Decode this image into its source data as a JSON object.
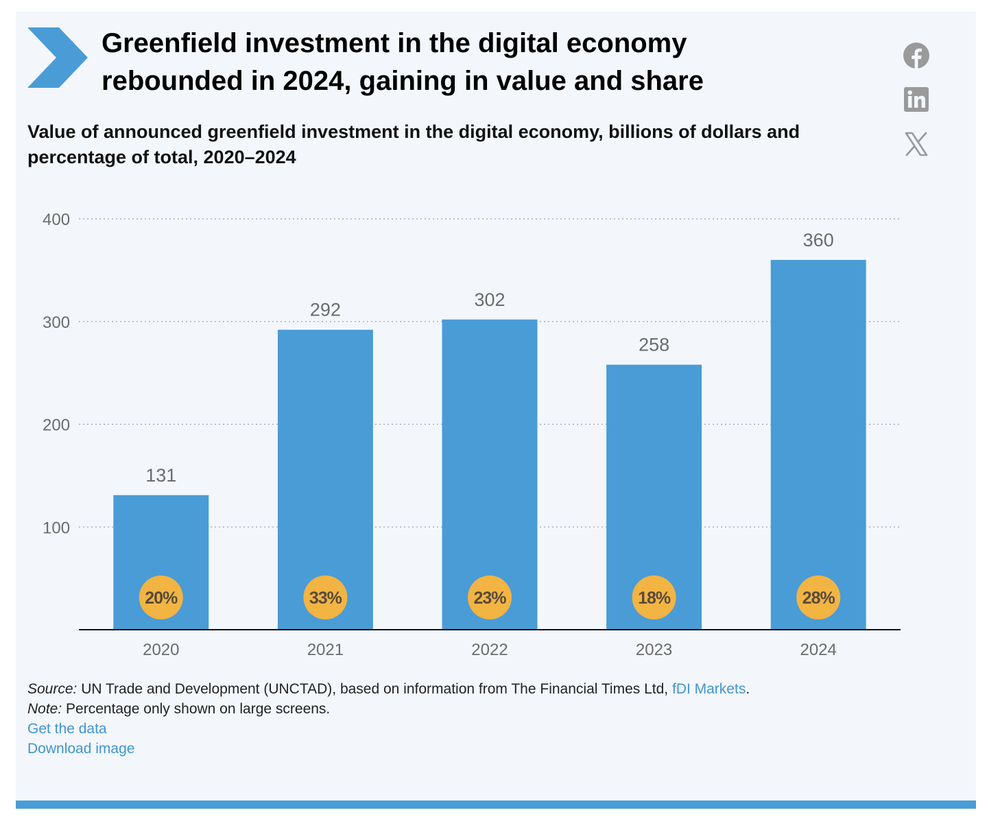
{
  "headline": "Greenfield investment in the digital economy rebounded in 2024, gaining in value and share",
  "social": {
    "facebook_icon": "facebook-icon",
    "linkedin_icon": "linkedin-icon",
    "x_icon": "x-icon"
  },
  "colors": {
    "bar": "#4a9cd6",
    "badge": "#f2b443",
    "accent": "#4a9cd6",
    "link": "#3f95d0"
  },
  "chart_data": {
    "type": "bar",
    "title": "Value of announced greenfield investment in the digital economy, billions of dollars and percentage of total, 2020–2024",
    "categories": [
      "2020",
      "2021",
      "2022",
      "2023",
      "2024"
    ],
    "values": [
      131,
      292,
      302,
      258,
      360
    ],
    "value_labels": [
      "131",
      "292",
      "302",
      "258",
      "360"
    ],
    "share_of_total": [
      "20%",
      "33%",
      "23%",
      "18%",
      "28%"
    ],
    "ylim": [
      0,
      400
    ],
    "yticks": [
      100,
      200,
      300,
      400
    ],
    "ytick_labels": [
      "100",
      "200",
      "300",
      "400"
    ],
    "grid": "horizontal dotted"
  },
  "footer": {
    "source_label": "Source:",
    "source_text": " UN Trade and Development (UNCTAD), based on information from The Financial Times Ltd, ",
    "source_link": "fDI Markets",
    "source_end": ".",
    "note_label": "Note:",
    "note_text": " Percentage only shown on large screens.",
    "get_data": "Get the data",
    "download_image": "Download image"
  }
}
